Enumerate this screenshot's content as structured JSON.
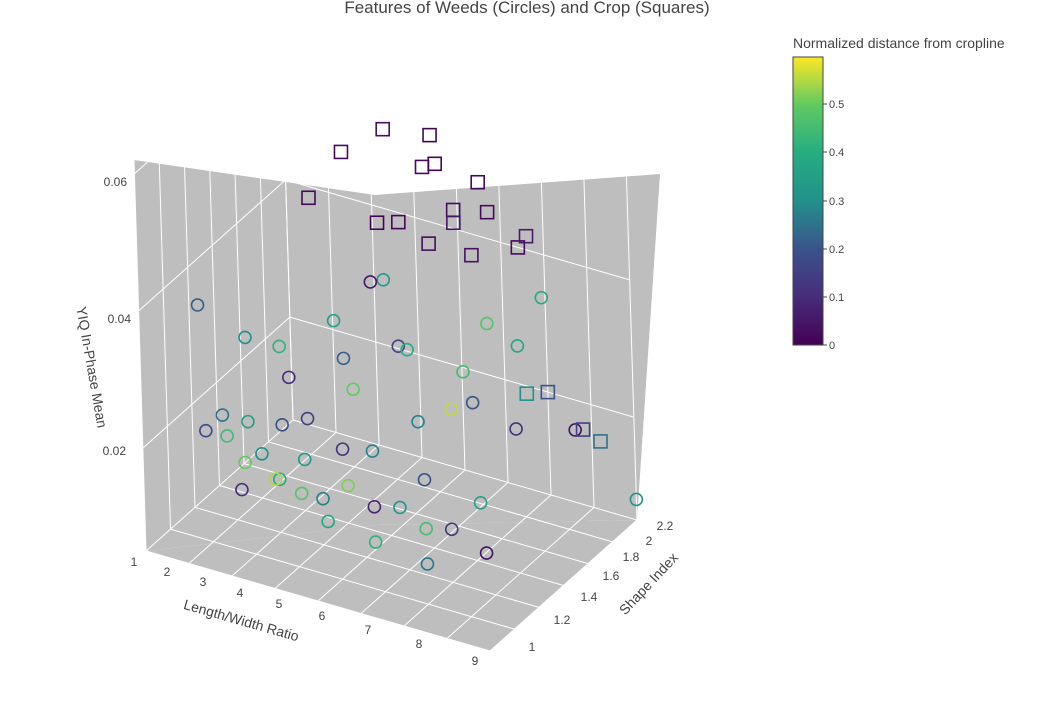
{
  "chart_data": {
    "type": "scatter3d",
    "title": "Features of Weeds (Circles) and Crop (Squares)",
    "axes": {
      "x": {
        "label": "Length/Width Ratio",
        "ticks": [
          "1",
          "2",
          "3",
          "4",
          "5",
          "6",
          "7",
          "8",
          "9"
        ]
      },
      "y": {
        "label": "Shape Index",
        "ticks": [
          "1",
          "1.2",
          "1.4",
          "1.6",
          "1.8",
          "2",
          "2.2"
        ]
      },
      "z": {
        "label": "YIQ In-Phase Mean",
        "ticks": [
          "0.02",
          "0.04",
          "0.06"
        ]
      }
    },
    "colorbar": {
      "title": "Normalized distance from cropline",
      "colorscale": "Viridis",
      "range": [
        0,
        0.6
      ],
      "ticks": [
        "0",
        "0.1",
        "0.2",
        "0.3",
        "0.4",
        "0.5"
      ]
    },
    "scene_background": "#bebebe",
    "series": [
      {
        "name": "Weeds",
        "symbol": "circle",
        "points": [
          [
            1.5,
            1.3,
            0.037,
            0.22
          ],
          [
            1.9,
            1.2,
            0.021,
            0.18
          ],
          [
            2.1,
            1.3,
            0.019,
            0.45
          ],
          [
            2.3,
            1.2,
            0.024,
            0.25
          ],
          [
            2.6,
            1.3,
            0.022,
            0.35
          ],
          [
            2.8,
            1.2,
            0.018,
            0.5
          ],
          [
            3.0,
            1.1,
            0.016,
            0.1
          ],
          [
            3.2,
            1.2,
            0.02,
            0.3
          ],
          [
            3.4,
            1.3,
            0.023,
            0.2
          ],
          [
            3.6,
            1.2,
            0.017,
            0.4
          ],
          [
            3.8,
            1.1,
            0.019,
            0.55
          ],
          [
            4.0,
            1.3,
            0.025,
            0.15
          ],
          [
            4.2,
            1.2,
            0.021,
            0.33
          ],
          [
            4.4,
            1.1,
            0.018,
            0.48
          ],
          [
            4.6,
            1.2,
            0.016,
            0.27
          ],
          [
            4.8,
            1.3,
            0.022,
            0.12
          ],
          [
            5.0,
            1.1,
            0.015,
            0.38
          ],
          [
            5.2,
            1.2,
            0.019,
            0.52
          ],
          [
            5.5,
            1.3,
            0.023,
            0.28
          ],
          [
            5.8,
            1.2,
            0.017,
            0.08
          ],
          [
            6.1,
            1.1,
            0.014,
            0.42
          ],
          [
            6.4,
            1.2,
            0.018,
            0.32
          ],
          [
            6.7,
            1.3,
            0.021,
            0.2
          ],
          [
            7.0,
            1.2,
            0.016,
            0.46
          ],
          [
            7.3,
            1.1,
            0.013,
            0.26
          ],
          [
            7.6,
            1.2,
            0.017,
            0.14
          ],
          [
            8.0,
            1.3,
            0.02,
            0.36
          ],
          [
            8.4,
            1.2,
            0.015,
            0.05
          ],
          [
            2.0,
            1.5,
            0.03,
            0.3
          ],
          [
            2.5,
            1.6,
            0.028,
            0.42
          ],
          [
            3.0,
            1.5,
            0.026,
            0.1
          ],
          [
            3.5,
            1.7,
            0.032,
            0.35
          ],
          [
            4.0,
            1.6,
            0.029,
            0.22
          ],
          [
            4.5,
            1.5,
            0.027,
            0.5
          ],
          [
            5.0,
            1.7,
            0.031,
            0.17
          ],
          [
            5.5,
            1.6,
            0.033,
            0.4
          ],
          [
            6.0,
            1.5,
            0.025,
            0.28
          ],
          [
            6.5,
            1.7,
            0.03,
            0.45
          ],
          [
            7.0,
            1.6,
            0.028,
            0.2
          ],
          [
            7.5,
            1.8,
            0.034,
            0.38
          ],
          [
            8.0,
            1.6,
            0.026,
            0.12
          ],
          [
            8.5,
            1.9,
            0.022,
            0.04
          ],
          [
            9.0,
            2.2,
            0.008,
            0.3
          ],
          [
            7.8,
            1.9,
            0.04,
            0.4
          ],
          [
            6.8,
            1.8,
            0.036,
            0.48
          ],
          [
            6.2,
            1.7,
            0.024,
            0.56
          ],
          [
            4.4,
            1.8,
            0.038,
            0.33
          ],
          [
            3.8,
            1.9,
            0.035,
            0.06
          ]
        ]
      },
      {
        "name": "Crop",
        "symbol": "square",
        "points": [
          [
            3.5,
            1.8,
            0.055,
            0.02
          ],
          [
            4.2,
            1.9,
            0.058,
            0.03
          ],
          [
            5.0,
            2.0,
            0.057,
            0.01
          ],
          [
            4.8,
            2.0,
            0.052,
            0.02
          ],
          [
            3.0,
            1.7,
            0.049,
            0.02
          ],
          [
            5.5,
            2.0,
            0.047,
            0.03
          ],
          [
            4.5,
            1.9,
            0.045,
            0.01
          ],
          [
            5.2,
            2.1,
            0.043,
            0.05
          ],
          [
            6.0,
            2.1,
            0.046,
            0.02
          ],
          [
            4.9,
            2.0,
            0.041,
            0.03
          ],
          [
            5.6,
            2.1,
            0.039,
            0.04
          ],
          [
            6.4,
            2.2,
            0.04,
            0.02
          ],
          [
            4.0,
            1.9,
            0.044,
            0.01
          ],
          [
            5.8,
            2.1,
            0.05,
            0.02
          ],
          [
            6.6,
            2.2,
            0.042,
            0.06
          ],
          [
            5.1,
            2.0,
            0.053,
            0.01
          ],
          [
            7.0,
            2.2,
            0.02,
            0.2
          ],
          [
            7.8,
            2.2,
            0.016,
            0.15
          ],
          [
            8.2,
            2.2,
            0.015,
            0.25
          ],
          [
            6.8,
            2.1,
            0.021,
            0.3
          ]
        ]
      }
    ]
  }
}
